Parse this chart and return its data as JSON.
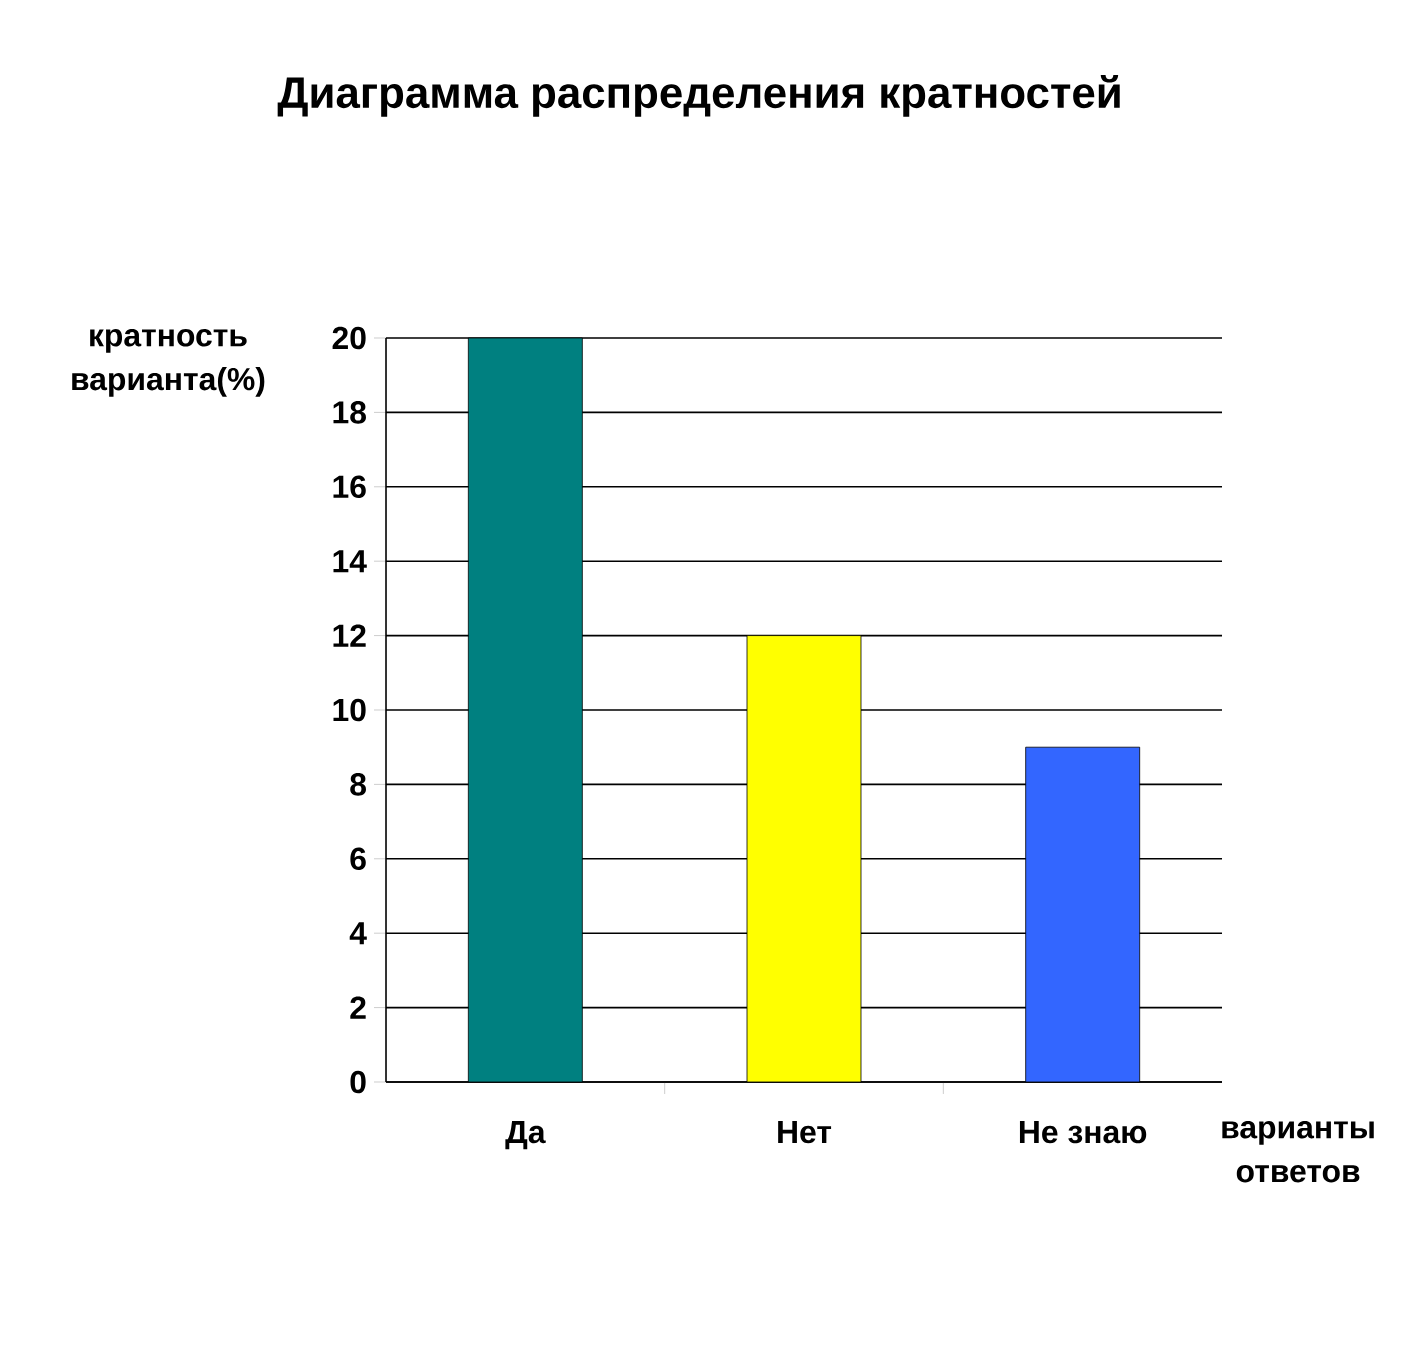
{
  "chart_data": {
    "type": "bar",
    "title": "Диаграмма распределения кратностей",
    "xlabel": "варианты ответов",
    "ylabel": "кратность варианта(%)",
    "categories": [
      "Да",
      "Нет",
      "Не знаю"
    ],
    "values": [
      20,
      12,
      9
    ],
    "colors": [
      "#008080",
      "#ffff00",
      "#3366ff"
    ],
    "ylim": [
      0,
      20
    ],
    "yticks": [
      0,
      2,
      4,
      6,
      8,
      10,
      12,
      14,
      16,
      18,
      20
    ],
    "grid": "y"
  }
}
